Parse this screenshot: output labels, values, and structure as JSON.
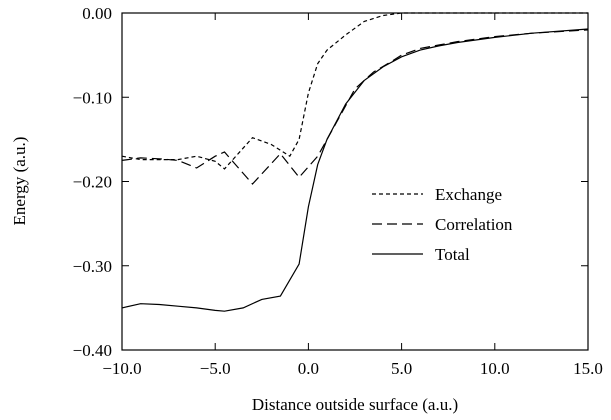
{
  "chart_data": {
    "type": "line",
    "xlabel": "Distance outside surface (a.u.)",
    "ylabel": "Energy (a.u.)",
    "xlim": [
      -10,
      15
    ],
    "ylim": [
      -0.4,
      0.0
    ],
    "x_ticks": [
      -10,
      -5,
      0,
      5,
      10,
      15
    ],
    "x_tick_labels": [
      "−10.0",
      "−5.0",
      "0.0",
      "5.0",
      "10.0",
      "15.0"
    ],
    "y_ticks": [
      0.0,
      -0.1,
      -0.2,
      -0.3,
      -0.4
    ],
    "y_tick_labels": [
      "0.00",
      "−0.10",
      "−0.20",
      "−0.30",
      "−0.40"
    ],
    "grid": false,
    "legend": "center-right",
    "series": [
      {
        "name": "Exchange",
        "style": "short-dash",
        "color": "#000000",
        "points": [
          [
            -10,
            -0.17
          ],
          [
            -9,
            -0.174
          ],
          [
            -8,
            -0.174
          ],
          [
            -7,
            -0.174
          ],
          [
            -6,
            -0.17
          ],
          [
            -5,
            -0.176
          ],
          [
            -4.5,
            -0.185
          ],
          [
            -3,
            -0.148
          ],
          [
            -2,
            -0.156
          ],
          [
            -1,
            -0.17
          ],
          [
            -0.5,
            -0.15
          ],
          [
            0,
            -0.095
          ],
          [
            0.5,
            -0.06
          ],
          [
            1,
            -0.044
          ],
          [
            2,
            -0.026
          ],
          [
            3,
            -0.01
          ],
          [
            4,
            -0.003
          ],
          [
            5,
            0.0
          ],
          [
            7,
            0.0
          ],
          [
            10,
            0.0
          ],
          [
            12,
            0.0
          ],
          [
            15,
            0.0
          ]
        ]
      },
      {
        "name": "Correlation",
        "style": "long-dash",
        "color": "#000000",
        "points": [
          [
            -10,
            -0.175
          ],
          [
            -9,
            -0.172
          ],
          [
            -8,
            -0.173
          ],
          [
            -7,
            -0.175
          ],
          [
            -6,
            -0.184
          ],
          [
            -5,
            -0.17
          ],
          [
            -4.5,
            -0.165
          ],
          [
            -3,
            -0.203
          ],
          [
            -1.5,
            -0.167
          ],
          [
            -0.5,
            -0.195
          ],
          [
            0.5,
            -0.17
          ],
          [
            1.5,
            -0.13
          ],
          [
            2.5,
            -0.09
          ],
          [
            3.5,
            -0.07
          ],
          [
            4.5,
            -0.057
          ],
          [
            5,
            -0.05
          ],
          [
            6,
            -0.042
          ],
          [
            7,
            -0.038
          ],
          [
            8,
            -0.034
          ],
          [
            10,
            -0.028
          ],
          [
            12,
            -0.024
          ],
          [
            15,
            -0.02
          ]
        ]
      },
      {
        "name": "Total",
        "style": "solid",
        "color": "#000000",
        "points": [
          [
            -10,
            -0.35
          ],
          [
            -9,
            -0.345
          ],
          [
            -8,
            -0.346
          ],
          [
            -7,
            -0.348
          ],
          [
            -6,
            -0.35
          ],
          [
            -5,
            -0.353
          ],
          [
            -4.5,
            -0.354
          ],
          [
            -3.5,
            -0.35
          ],
          [
            -2.5,
            -0.34
          ],
          [
            -1.5,
            -0.336
          ],
          [
            -0.5,
            -0.298
          ],
          [
            0,
            -0.23
          ],
          [
            0.5,
            -0.18
          ],
          [
            1,
            -0.15
          ],
          [
            2,
            -0.108
          ],
          [
            3,
            -0.08
          ],
          [
            4,
            -0.064
          ],
          [
            5,
            -0.052
          ],
          [
            6,
            -0.044
          ],
          [
            7,
            -0.039
          ],
          [
            8,
            -0.035
          ],
          [
            10,
            -0.029
          ],
          [
            12,
            -0.024
          ],
          [
            15,
            -0.019
          ]
        ]
      }
    ]
  }
}
